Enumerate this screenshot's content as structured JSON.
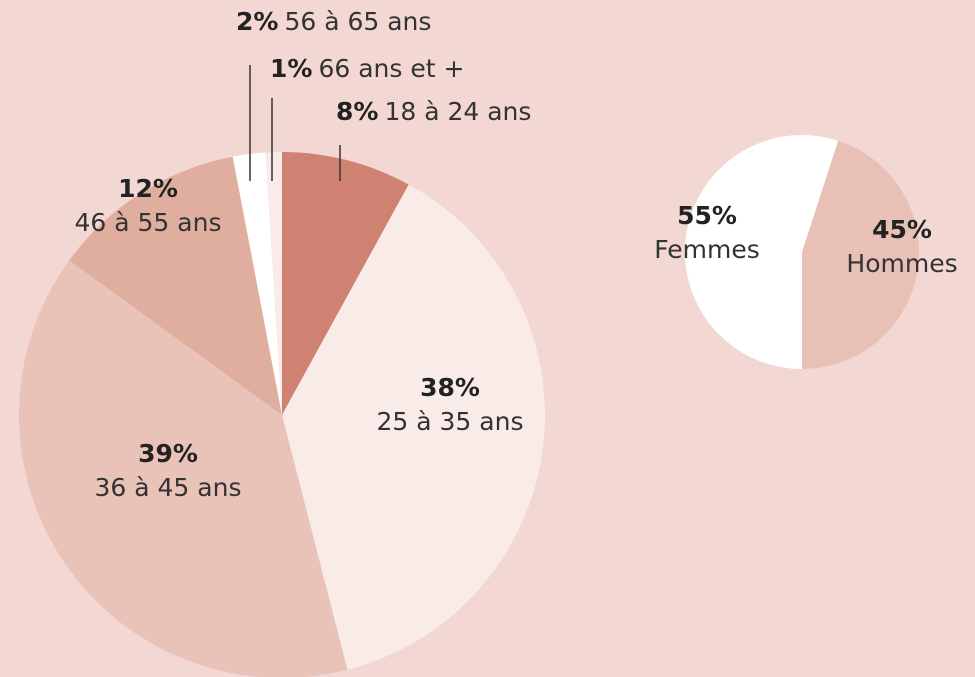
{
  "chart_data": [
    {
      "type": "pie",
      "categories": [
        "18 à 24 ans",
        "25 à 35 ans",
        "36 à 45 ans",
        "46 à 55 ans",
        "56 à 65 ans",
        "66 ans et +"
      ],
      "values": [
        8,
        38,
        39,
        12,
        2,
        1
      ],
      "value_labels": [
        "8%",
        "38%",
        "39%",
        "12%",
        "2%",
        "1%"
      ],
      "colors": [
        "#d08272",
        "#f8ebe8",
        "#e9c2b8",
        "#e0ae9f",
        "#ffffff",
        "#f8ebe8"
      ]
    },
    {
      "type": "pie",
      "categories": [
        "Hommes",
        "Femmes"
      ],
      "values": [
        45,
        55
      ],
      "value_labels": [
        "45%",
        "55%"
      ],
      "colors": [
        "#e8c0b6",
        "#ffffff"
      ]
    }
  ]
}
